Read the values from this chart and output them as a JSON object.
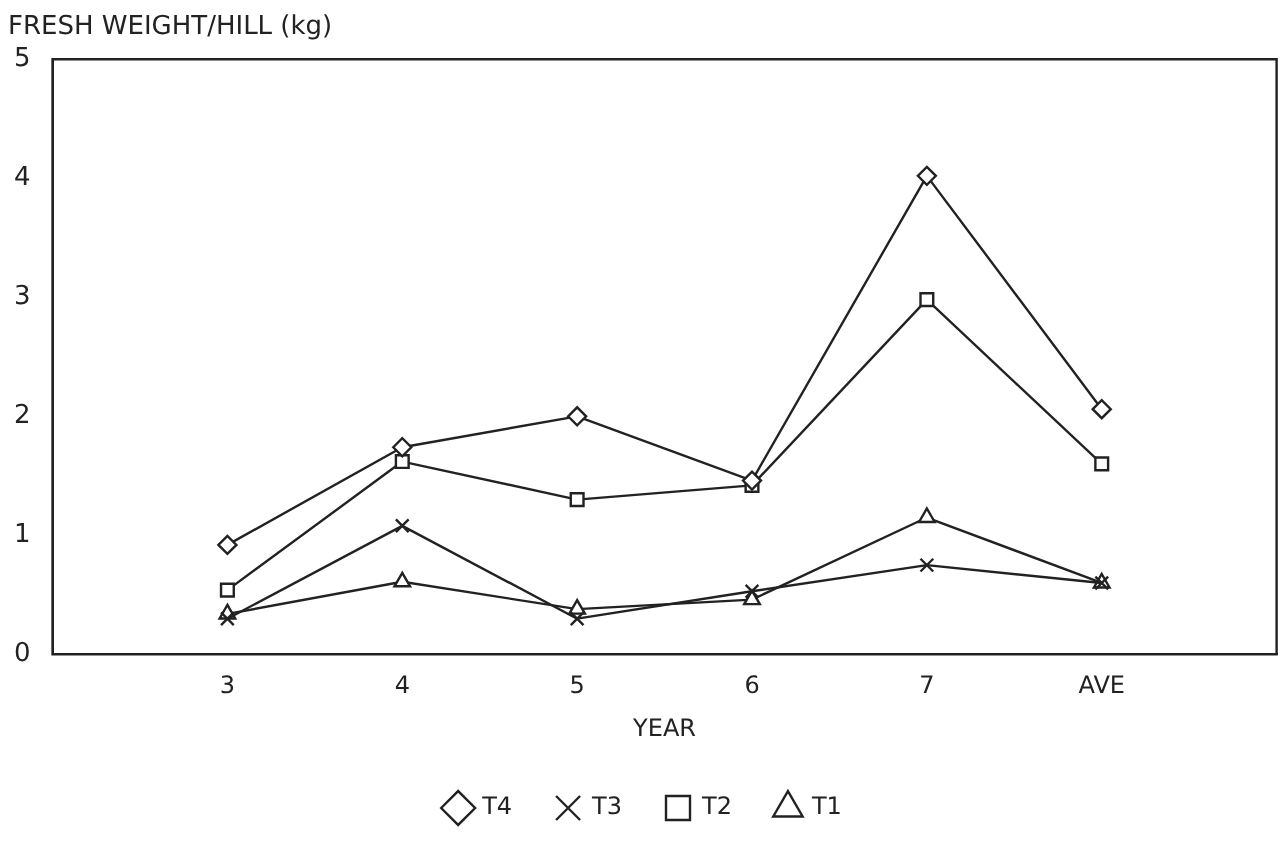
{
  "chart_data": {
    "type": "line",
    "ylabel": "FRESH WEIGHT/HILL (kg)",
    "xlabel": "YEAR",
    "categories": [
      "3",
      "4",
      "5",
      "6",
      "7",
      "AVE"
    ],
    "ylim": [
      0,
      5
    ],
    "yticks": [
      0,
      1,
      2,
      3,
      4,
      5
    ],
    "grid": false,
    "legend": "bottom",
    "line_style": "solid",
    "series": [
      {
        "name": "T4",
        "color": "#222222",
        "marker": "diamond",
        "values": [
          0.92,
          1.74,
          2.0,
          1.46,
          4.02,
          2.06
        ]
      },
      {
        "name": "T3",
        "color": "#222222",
        "marker": "cross",
        "values": [
          0.3,
          1.08,
          0.3,
          0.53,
          0.75,
          0.6
        ]
      },
      {
        "name": "T2",
        "color": "#222222",
        "marker": "square",
        "values": [
          0.54,
          1.62,
          1.3,
          1.42,
          2.98,
          1.6
        ]
      },
      {
        "name": "T1",
        "color": "#222222",
        "marker": "triangle",
        "values": [
          0.34,
          0.61,
          0.38,
          0.46,
          1.15,
          0.6
        ]
      }
    ]
  }
}
